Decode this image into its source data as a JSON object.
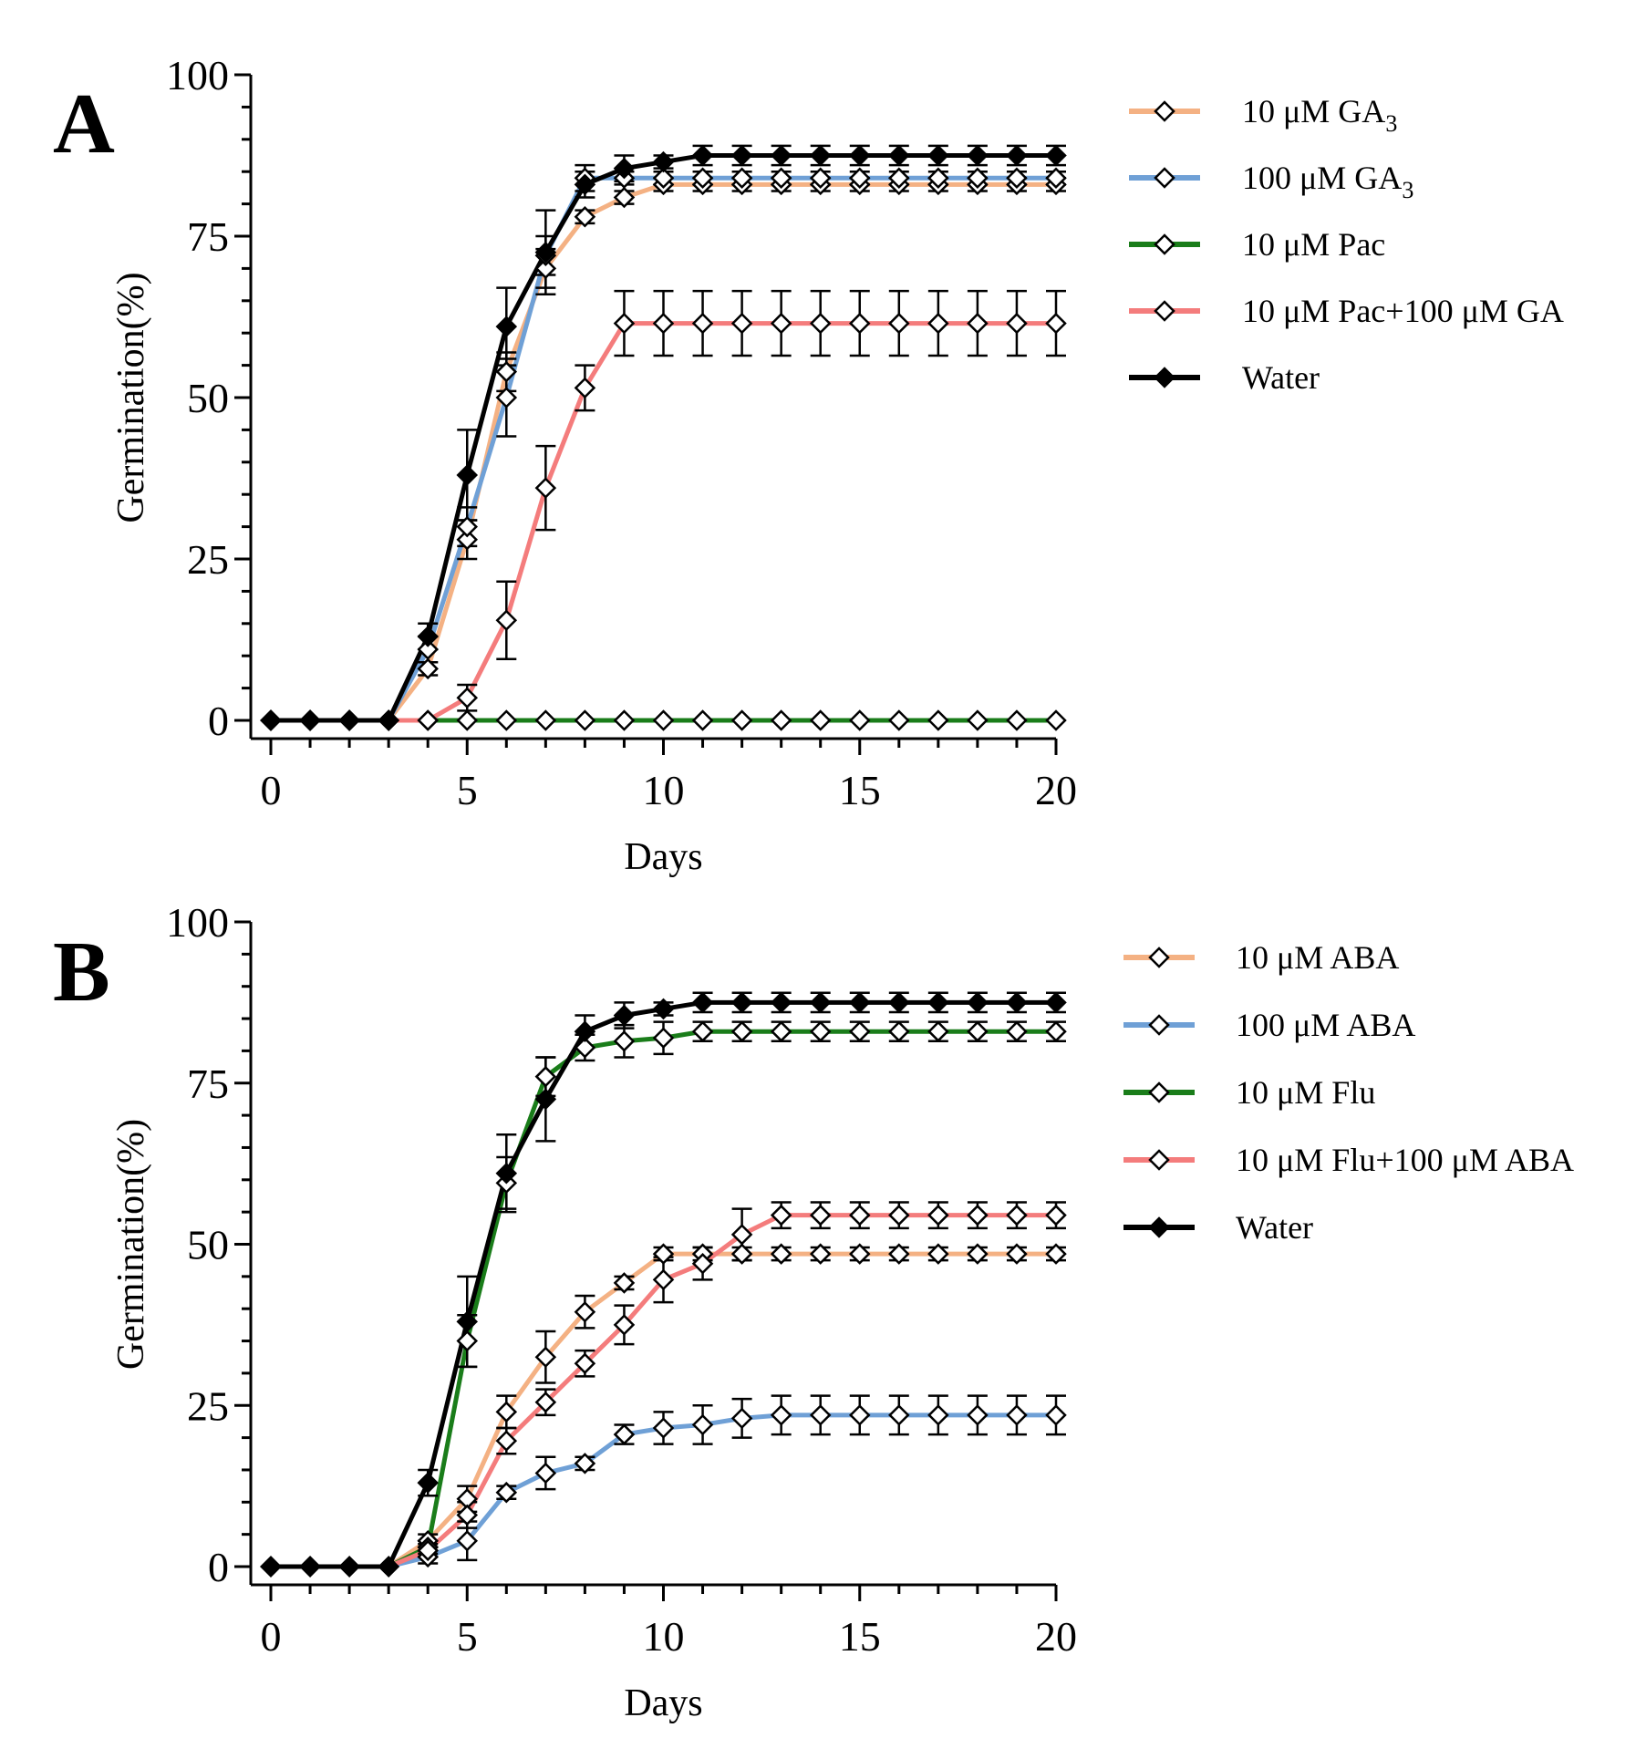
{
  "chart_data": [
    {
      "type": "line",
      "panel_label": "A",
      "xlabel": "Days",
      "ylabel": "Germination(%)",
      "xlim": [
        0,
        20
      ],
      "ylim": [
        0,
        100
      ],
      "xticks": [
        "0",
        "5",
        "10",
        "15",
        "20"
      ],
      "yticks": [
        "0",
        "25",
        "50",
        "75",
        "100"
      ],
      "legend_position": "right",
      "x": [
        0,
        1,
        2,
        3,
        4,
        5,
        6,
        7,
        8,
        9,
        10,
        11,
        12,
        13,
        14,
        15,
        16,
        17,
        18,
        19,
        20
      ],
      "series": [
        {
          "name": "10 μM GA",
          "name_sub": "3",
          "color": "#f4b183",
          "marker": "open-diamond",
          "values": [
            0,
            0,
            0,
            0,
            8,
            28,
            54,
            70,
            78,
            81,
            83,
            83,
            83,
            83,
            83,
            83,
            83,
            83,
            83,
            83,
            83
          ],
          "errors": [
            0,
            0,
            0,
            0,
            1,
            3,
            3,
            3,
            1,
            1,
            1,
            1,
            1,
            1,
            1,
            1,
            1,
            1,
            1,
            1,
            1
          ]
        },
        {
          "name": "100 μM GA",
          "name_sub": "3",
          "color": "#6fa0d6",
          "marker": "open-diamond",
          "values": [
            0,
            0,
            0,
            0,
            11,
            30,
            50,
            72,
            84,
            84,
            84,
            84,
            84,
            84,
            84,
            84,
            84,
            84,
            84,
            84,
            84
          ],
          "errors": [
            0,
            0,
            0,
            0,
            2,
            3,
            6,
            3,
            2,
            1,
            1,
            1,
            1,
            1,
            1,
            1,
            1,
            1,
            1,
            1,
            1
          ]
        },
        {
          "name": "10 μM Pac",
          "name_sub": "",
          "color": "#1a7d1a",
          "marker": "open-diamond",
          "values": [
            0,
            0,
            0,
            0,
            0,
            0,
            0,
            0,
            0,
            0,
            0,
            0,
            0,
            0,
            0,
            0,
            0,
            0,
            0,
            0,
            0
          ],
          "errors": [
            0,
            0,
            0,
            0,
            0,
            0,
            0,
            0,
            0,
            0,
            0,
            0,
            0,
            0,
            0,
            0,
            0,
            0,
            0,
            0,
            0
          ]
        },
        {
          "name": "10 μM Pac+100 μM GA",
          "name_sub": "",
          "color": "#f47c7c",
          "marker": "open-diamond",
          "values": [
            0,
            0,
            0,
            0,
            0,
            3.5,
            15.5,
            36,
            51.5,
            61.5,
            61.5,
            61.5,
            61.5,
            61.5,
            61.5,
            61.5,
            61.5,
            61.5,
            61.5,
            61.5,
            61.5
          ],
          "errors": [
            0,
            0,
            0,
            0,
            0,
            2,
            6,
            6.5,
            3.5,
            5,
            5,
            5,
            5,
            5,
            5,
            5,
            5,
            5,
            5,
            5,
            5
          ]
        },
        {
          "name": "Water",
          "name_sub": "",
          "color": "#000000",
          "marker": "filled-diamond",
          "values": [
            0,
            0,
            0,
            0,
            13,
            38,
            61,
            72.5,
            83,
            85.5,
            86.5,
            87.5,
            87.5,
            87.5,
            87.5,
            87.5,
            87.5,
            87.5,
            87.5,
            87.5,
            87.5
          ],
          "errors": [
            0,
            0,
            0,
            0,
            2,
            7,
            6,
            6.5,
            2,
            2,
            1,
            1.5,
            1.5,
            1.5,
            1.5,
            1.5,
            1.5,
            1.5,
            1.5,
            1.5,
            1.5
          ]
        }
      ]
    },
    {
      "type": "line",
      "panel_label": "B",
      "xlabel": "Days",
      "ylabel": "Germination(%)",
      "xlim": [
        0,
        20
      ],
      "ylim": [
        0,
        100
      ],
      "xticks": [
        "0",
        "5",
        "10",
        "15",
        "20"
      ],
      "yticks": [
        "0",
        "25",
        "50",
        "75",
        "100"
      ],
      "legend_position": "right",
      "x": [
        0,
        1,
        2,
        3,
        4,
        5,
        6,
        7,
        8,
        9,
        10,
        11,
        12,
        13,
        14,
        15,
        16,
        17,
        18,
        19,
        20
      ],
      "series": [
        {
          "name": "10 μM ABA",
          "name_sub": "",
          "color": "#f4b183",
          "marker": "open-diamond",
          "values": [
            0,
            0,
            0,
            0,
            4,
            10.5,
            24,
            32.5,
            39.5,
            44,
            48.5,
            48.5,
            48.5,
            48.5,
            48.5,
            48.5,
            48.5,
            48.5,
            48.5,
            48.5,
            48.5
          ],
          "errors": [
            0,
            0,
            0,
            0,
            1,
            2,
            2.5,
            4,
            2.5,
            1,
            1,
            1,
            1,
            1,
            1,
            1,
            1,
            1,
            1,
            1,
            1
          ]
        },
        {
          "name": "100 μM ABA",
          "name_sub": "",
          "color": "#6fa0d6",
          "marker": "open-diamond",
          "values": [
            0,
            0,
            0,
            0,
            1.5,
            4,
            11.5,
            14.5,
            16,
            20.5,
            21.5,
            22,
            23,
            23.5,
            23.5,
            23.5,
            23.5,
            23.5,
            23.5,
            23.5,
            23.5
          ],
          "errors": [
            0,
            0,
            0,
            0,
            1,
            3,
            1,
            2.5,
            1,
            1.5,
            2.5,
            3,
            3,
            3,
            3,
            3,
            3,
            3,
            3,
            3,
            3
          ]
        },
        {
          "name": "10 μM Flu",
          "name_sub": "",
          "color": "#1a7d1a",
          "marker": "open-diamond",
          "values": [
            0,
            0,
            0,
            0,
            3,
            35,
            59.5,
            76,
            80.5,
            81.5,
            82,
            83,
            83,
            83,
            83,
            83,
            83,
            83,
            83,
            83,
            83
          ],
          "errors": [
            0,
            0,
            0,
            0,
            1,
            4,
            4,
            3,
            2,
            2.5,
            2.5,
            1.5,
            1.5,
            1.5,
            1.5,
            1.5,
            1.5,
            1.5,
            1.5,
            1.5,
            1.5
          ]
        },
        {
          "name": "10 μM Flu+100 μM ABA",
          "name_sub": "",
          "color": "#f47c7c",
          "marker": "open-diamond",
          "values": [
            0,
            0,
            0,
            0,
            2.5,
            8,
            19.5,
            25.5,
            31.5,
            37.5,
            44.5,
            47,
            51.5,
            54.5,
            54.5,
            54.5,
            54.5,
            54.5,
            54.5,
            54.5,
            54.5
          ],
          "errors": [
            0,
            0,
            0,
            0,
            1,
            2,
            2,
            2,
            2,
            3,
            3.5,
            2.5,
            4,
            2,
            2,
            2,
            2,
            2,
            2,
            2,
            2
          ]
        },
        {
          "name": "Water",
          "name_sub": "",
          "color": "#000000",
          "marker": "filled-diamond",
          "values": [
            0,
            0,
            0,
            0,
            13,
            38,
            61,
            72.5,
            83,
            85.5,
            86.5,
            87.5,
            87.5,
            87.5,
            87.5,
            87.5,
            87.5,
            87.5,
            87.5,
            87.5,
            87.5
          ],
          "errors": [
            0,
            0,
            0,
            0,
            2,
            7,
            6,
            6.5,
            2.5,
            2,
            1,
            1.5,
            1.5,
            1.5,
            1.5,
            1.5,
            1.5,
            1.5,
            1.5,
            1.5,
            1.5
          ]
        }
      ]
    }
  ]
}
